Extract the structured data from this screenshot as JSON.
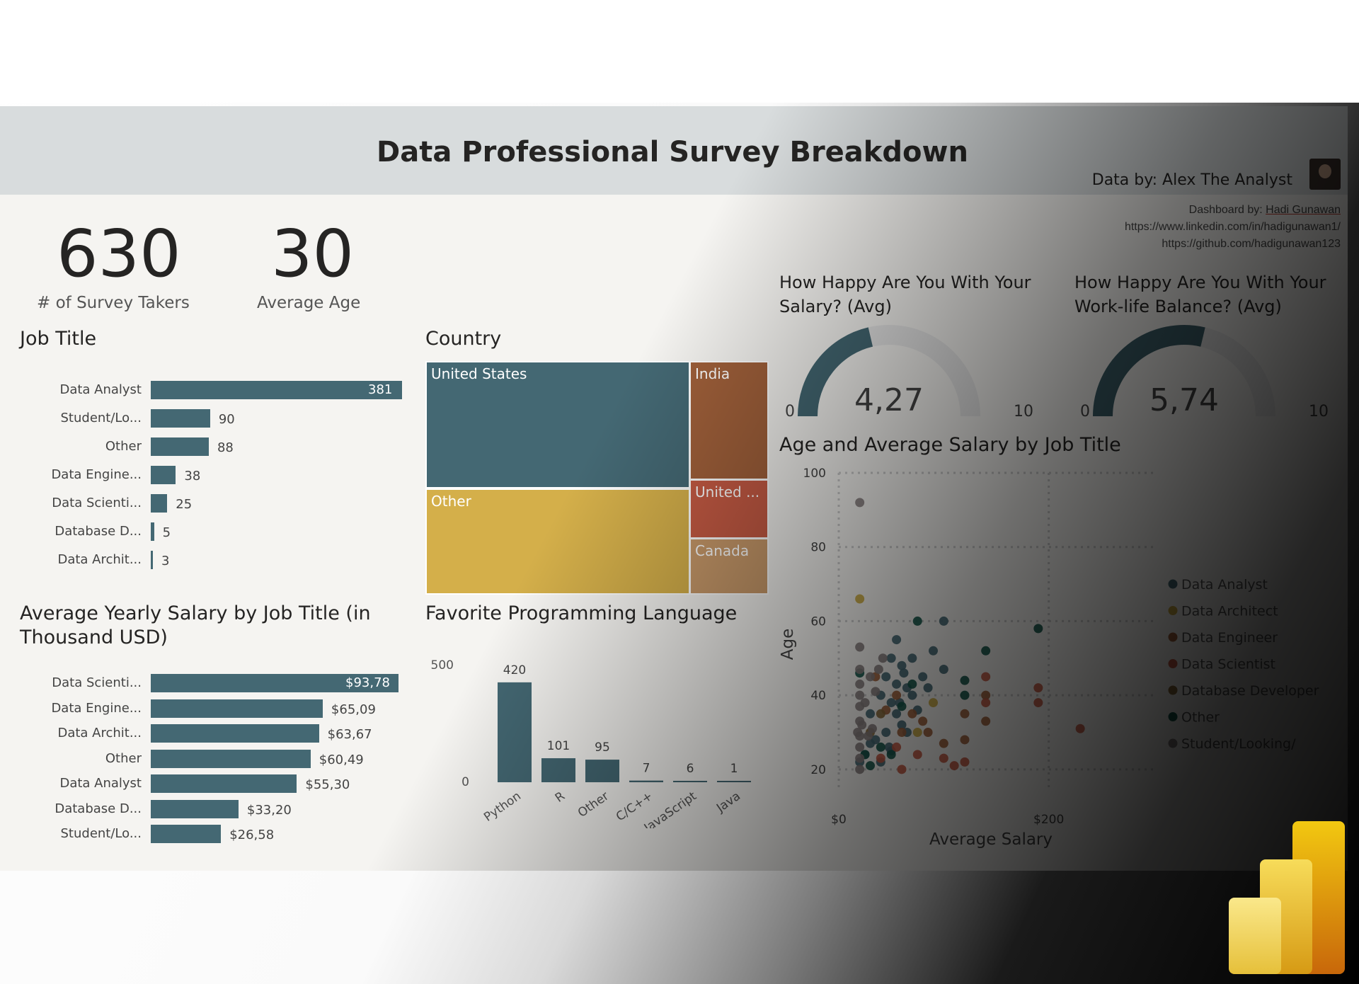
{
  "header": {
    "title": "Data Professional Survey Breakdown",
    "data_by": "Data by: Alex The Analyst",
    "dashboard_by_prefix": "Dashboard by: ",
    "dashboard_by_name": "Hadi Gunawan",
    "linkedin": "https://www.linkedin.com/in/hadigunawan1/",
    "github": "https://github.com/hadigunawan123"
  },
  "kpis": {
    "survey_takers": {
      "value": "630",
      "label": "# of Survey Takers"
    },
    "average_age": {
      "value": "30",
      "label": "Average Age"
    }
  },
  "colors": {
    "teal": "#446873",
    "brown": "#a0603a",
    "gold": "#d4af4a",
    "red": "#c65b44",
    "tan": "#c99a6a",
    "green": "#15584a"
  },
  "chart_data": [
    {
      "type": "bar",
      "orientation": "horizontal",
      "title": "Job Title",
      "categories": [
        "Data Analyst",
        "Student/Lo...",
        "Other",
        "Data Engine...",
        "Data Scienti...",
        "Database D...",
        "Data Archit..."
      ],
      "values": [
        381,
        90,
        88,
        38,
        25,
        5,
        3
      ],
      "value_labels": [
        "381",
        "90",
        "88",
        "38",
        "25",
        "5",
        "3"
      ]
    },
    {
      "type": "bar",
      "orientation": "horizontal",
      "title": "Average Yearly Salary by Job Title (in Thousand USD)",
      "categories": [
        "Data Scienti...",
        "Data Engine...",
        "Data Archit...",
        "Other",
        "Data Analyst",
        "Database D...",
        "Student/Lo..."
      ],
      "values": [
        93.78,
        65.09,
        63.67,
        60.49,
        55.3,
        33.2,
        26.58
      ],
      "value_labels": [
        "$93,78",
        "$65,09",
        "$63,67",
        "$60,49",
        "$55,30",
        "$33,20",
        "$26,58"
      ]
    },
    {
      "type": "treemap",
      "title": "Country",
      "categories": [
        "United States",
        "Other",
        "India",
        "United ...",
        "Canada"
      ],
      "values": [
        260,
        200,
        65,
        42,
        35
      ],
      "colors": [
        "#446873",
        "#d4af4a",
        "#a0603a",
        "#c65b44",
        "#c99a6a"
      ]
    },
    {
      "type": "bar",
      "orientation": "vertical",
      "title": "Favorite Programming Language",
      "categories": [
        "Python",
        "R",
        "Other",
        "C/C++",
        "JavaScript",
        "Java"
      ],
      "values": [
        420,
        101,
        95,
        7,
        6,
        1
      ],
      "ytick_labels": [
        "500",
        "0"
      ],
      "ylim": [
        0,
        500
      ]
    },
    {
      "type": "gauge",
      "title": "How Happy Are You With Your Salary? (Avg)",
      "value": 4.27,
      "value_label": "4,27",
      "min_label": "0",
      "max_label": "10",
      "range": [
        0,
        10
      ]
    },
    {
      "type": "gauge",
      "title": "How Happy Are You With Your Work-life Balance? (Avg)",
      "value": 5.74,
      "value_label": "5,74",
      "min_label": "0",
      "max_label": "10",
      "range": [
        0,
        10
      ]
    },
    {
      "type": "scatter",
      "title": "Age and Average Salary by Job Title",
      "xlabel": "Average Salary",
      "ylabel": "Age",
      "xtick_labels": [
        "$0",
        "$200"
      ],
      "ytick_labels": [
        "100",
        "80",
        "60",
        "40",
        "20"
      ],
      "xlim": [
        0,
        300
      ],
      "ylim": [
        15,
        100
      ],
      "grid": true,
      "legend_position": "right",
      "series": [
        {
          "name": "Data Analyst",
          "color": "#446873",
          "points": [
            [
              45,
              45
            ],
            [
              50,
              50
            ],
            [
              55,
              55
            ],
            [
              60,
              48
            ],
            [
              65,
              42
            ],
            [
              50,
              38
            ],
            [
              40,
              40
            ],
            [
              55,
              35
            ],
            [
              70,
              40
            ],
            [
              80,
              45
            ],
            [
              90,
              52
            ],
            [
              100,
              60
            ],
            [
              100,
              47
            ],
            [
              45,
              30
            ],
            [
              60,
              32
            ],
            [
              35,
              28
            ],
            [
              30,
              27
            ],
            [
              25,
              24
            ],
            [
              40,
              22
            ],
            [
              50,
              25
            ],
            [
              65,
              30
            ],
            [
              75,
              36
            ],
            [
              85,
              42
            ],
            [
              20,
              22
            ],
            [
              30,
              35
            ],
            [
              55,
              43
            ],
            [
              62,
              46
            ],
            [
              70,
              50
            ],
            [
              58,
              38
            ],
            [
              48,
              26
            ]
          ]
        },
        {
          "name": "Data Architect",
          "color": "#c9a83f",
          "points": [
            [
              20,
              66
            ],
            [
              75,
              30
            ],
            [
              90,
              38
            ]
          ]
        },
        {
          "name": "Data Engineer",
          "color": "#a0603a",
          "points": [
            [
              35,
              45
            ],
            [
              55,
              40
            ],
            [
              70,
              35
            ],
            [
              85,
              30
            ],
            [
              100,
              27
            ],
            [
              120,
              35
            ],
            [
              140,
              40
            ],
            [
              140,
              33
            ],
            [
              120,
              28
            ],
            [
              60,
              30
            ],
            [
              45,
              36
            ],
            [
              80,
              33
            ]
          ]
        },
        {
          "name": "Data Scientist",
          "color": "#c65b44",
          "points": [
            [
              140,
              45
            ],
            [
              140,
              38
            ],
            [
              190,
              42
            ],
            [
              190,
              38
            ],
            [
              230,
              31
            ],
            [
              120,
              22
            ],
            [
              100,
              23
            ],
            [
              110,
              21
            ],
            [
              60,
              20
            ],
            [
              40,
              23
            ],
            [
              55,
              26
            ],
            [
              75,
              24
            ]
          ]
        },
        {
          "name": "Database Developer",
          "color": "#8a6a3a",
          "points": [
            [
              30,
              30
            ],
            [
              40,
              35
            ]
          ]
        },
        {
          "name": "Other",
          "color": "#15584a",
          "points": [
            [
              75,
              60
            ],
            [
              190,
              58
            ],
            [
              140,
              52
            ],
            [
              120,
              44
            ],
            [
              120,
              40
            ],
            [
              20,
              46
            ],
            [
              40,
              26
            ],
            [
              50,
              24
            ],
            [
              30,
              21
            ],
            [
              25,
              24
            ],
            [
              60,
              37
            ],
            [
              70,
              43
            ]
          ]
        },
        {
          "name": "Student/Looking/",
          "color": "#888080",
          "points": [
            [
              20,
              92
            ],
            [
              20,
              53
            ],
            [
              20,
              47
            ],
            [
              20,
              43
            ],
            [
              20,
              40
            ],
            [
              20,
              37
            ],
            [
              20,
              33
            ],
            [
              20,
              29
            ],
            [
              20,
              26
            ],
            [
              20,
              23
            ],
            [
              20,
              20
            ],
            [
              22,
              32
            ],
            [
              28,
              29
            ],
            [
              32,
              31
            ],
            [
              35,
              41
            ],
            [
              38,
              47
            ],
            [
              42,
              50
            ],
            [
              30,
              45
            ],
            [
              25,
              38
            ],
            [
              18,
              30
            ]
          ]
        }
      ]
    }
  ]
}
